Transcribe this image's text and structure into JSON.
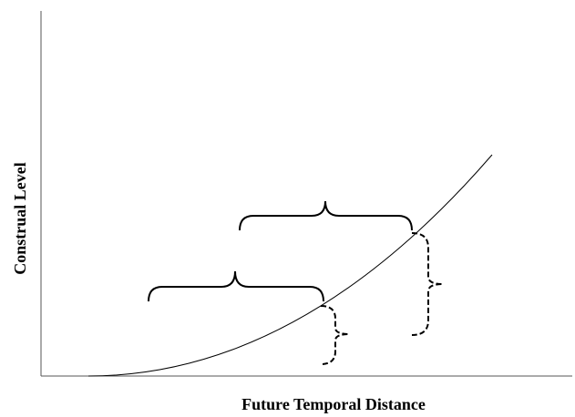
{
  "axes": {
    "y_label": "Construal Level",
    "x_label": "Future Temporal Distance"
  }
}
